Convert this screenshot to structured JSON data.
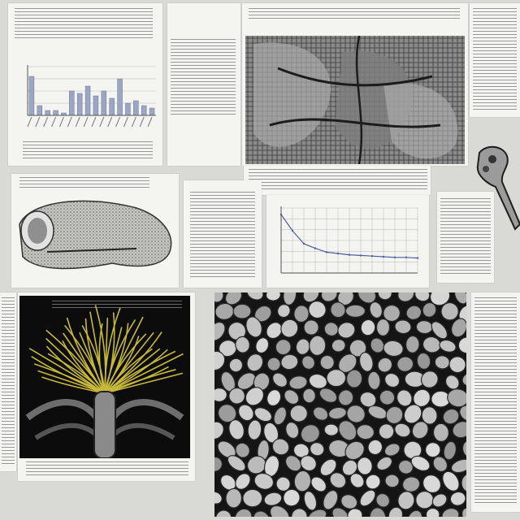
{
  "colors": {
    "paper": "#f4f4f1",
    "ink": "#3a3a3a",
    "bar": "#9aa6c2",
    "grid": "#b8b8b8",
    "line": "#4e5f9e",
    "yellow": "#c7b83a",
    "black": "#0c0c0c"
  },
  "chart_data": [
    {
      "type": "bar",
      "categories": [
        "",
        "",
        "",
        "",
        "",
        "",
        "",
        "",
        "",
        "",
        "",
        "",
        "",
        "",
        "",
        ""
      ],
      "values": [
        0.8,
        0.2,
        0.1,
        0.1,
        0.05,
        0.5,
        0.45,
        0.6,
        0.4,
        0.5,
        0.35,
        0.75,
        0.25,
        0.3,
        0.2,
        0.15
      ],
      "ylim": [
        0,
        1
      ],
      "grid": true
    },
    {
      "type": "line",
      "x": [
        0,
        1,
        2,
        3,
        4,
        5,
        6,
        7,
        8,
        9,
        10,
        11,
        12
      ],
      "series": [
        {
          "values": [
            0.9,
            0.65,
            0.45,
            0.38,
            0.32,
            0.3,
            0.28,
            0.27,
            0.26,
            0.25,
            0.24,
            0.24,
            0.23
          ]
        }
      ],
      "ylim": [
        0,
        1
      ],
      "grid": true
    }
  ],
  "icons": [
    "leaf-texture-illustration",
    "mollusk-shell-illustration",
    "bone-illustration",
    "root-system-illustration",
    "cell-tissue-illustration"
  ]
}
